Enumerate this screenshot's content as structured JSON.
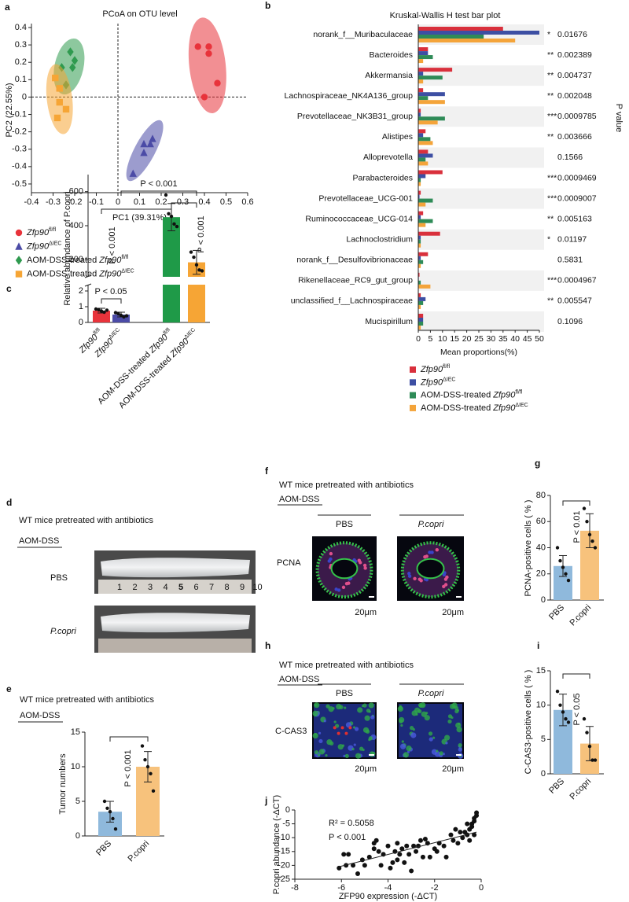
{
  "chart_data": [
    {
      "panel": "a",
      "type": "scatter",
      "title": "PCoA on OTU level",
      "xlabel": "PC1 (39.31%)",
      "ylabel": "PC2 (22.55%)",
      "xlim": [
        -0.4,
        0.6
      ],
      "xticks": [
        -0.4,
        -0.3,
        -0.2,
        -0.1,
        0,
        0.1,
        0.2,
        0.3,
        0.4,
        0.5,
        0.6
      ],
      "ylim": [
        -0.55,
        0.4
      ],
      "yticks": [
        -0.5,
        -0.4,
        -0.3,
        -0.2,
        -0.1,
        0,
        0.1,
        0.2,
        0.3,
        0.4
      ],
      "series": [
        {
          "name": "Zfp90",
          "sup": "fl/fl",
          "color": "#e8333b",
          "marker": "circle",
          "x": [
            0.37,
            0.42,
            0.42,
            0.46,
            0.4
          ],
          "y": [
            0.29,
            0.29,
            0.25,
            0.08,
            0.0
          ]
        },
        {
          "name": "Zfp90",
          "sup": "ΔIEC",
          "color": "#4b4ba6",
          "marker": "triangle",
          "x": [
            0.16,
            0.15,
            0.12,
            0.12,
            0.07
          ],
          "y": [
            -0.24,
            -0.27,
            -0.27,
            -0.32,
            -0.44
          ]
        },
        {
          "prefix": "AOM-DSS-treated",
          "name": "Zfp90",
          "sup": "fl/fl",
          "color": "#2f9a4f",
          "marker": "diamond",
          "x": [
            -0.22,
            -0.2,
            -0.21,
            -0.24,
            -0.26
          ],
          "y": [
            0.26,
            0.21,
            0.17,
            0.07,
            0.17
          ]
        },
        {
          "prefix": "AOM-DSS-treated",
          "name": "Zfp90",
          "sup": "ΔIEC",
          "color": "#f6a535",
          "marker": "square",
          "x": [
            -0.29,
            -0.27,
            -0.27,
            -0.24,
            -0.28
          ],
          "y": [
            0.11,
            0.05,
            -0.03,
            -0.07,
            -0.12
          ]
        }
      ]
    },
    {
      "panel": "b",
      "type": "hbar",
      "title": "Kruskal-Wallis H test bar plot",
      "xlabel": "Mean proportions(%)",
      "y2label": "P value",
      "xlim": [
        0,
        50
      ],
      "xticks": [
        0,
        5,
        10,
        15,
        20,
        25,
        30,
        35,
        40,
        45,
        50
      ],
      "categories": [
        "norank_f__Muribaculaceae",
        "Bacteroides",
        "Akkermansia",
        "Lachnospiraceae_NK4A136_group",
        "Prevotellaceae_NK3B31_group",
        "Alistipes",
        "Alloprevotella",
        "Parabacteroides",
        "Prevotellaceae_UCG-001",
        "Ruminococcaceae_UCG-014",
        "Lachnoclostridium",
        "norank_f__Desulfovibrionaceae",
        "Rikenellaceae_RC9_gut_group",
        "unclassified_f__Lachnospiraceae",
        "Mucispirillum"
      ],
      "stars": [
        "*",
        "**",
        "**",
        "**",
        "***",
        "**",
        null,
        "***",
        "***",
        "**",
        "*",
        null,
        "***",
        "**",
        null
      ],
      "p_values": [
        0.01676,
        0.002389,
        0.004737,
        0.002048,
        0.0009785,
        0.003666,
        0.1566,
        0.0009469,
        0.0009007,
        0.005163,
        0.01197,
        0.5831,
        0.0004967,
        0.005547,
        0.1096
      ],
      "series": [
        {
          "name": "Zfp90",
          "sup": "fl/fl",
          "color": "#d9303c",
          "values": [
            35,
            4,
            14,
            2,
            1,
            3,
            4,
            10,
            1,
            2,
            9,
            4,
            0.5,
            1,
            2
          ]
        },
        {
          "name": "Zfp90",
          "sup": "ΔIEC",
          "color": "#3d4fa3",
          "values": [
            50,
            4,
            2,
            11,
            1,
            2,
            6,
            3,
            0.5,
            1,
            1,
            1,
            0.2,
            3,
            2
          ]
        },
        {
          "prefix": "AOM-DSS-treated",
          "name": "Zfp90",
          "sup": "fl/fl",
          "color": "#2e8b57",
          "values": [
            27,
            6,
            10,
            4,
            11,
            5,
            3,
            1,
            6,
            6,
            1,
            2,
            1,
            2,
            2
          ]
        },
        {
          "prefix": "AOM-DSS-treated",
          "name": "Zfp90",
          "sup": "ΔIEC",
          "color": "#f4a43a",
          "values": [
            40,
            2,
            2,
            11,
            8,
            6,
            4,
            1,
            3,
            3,
            1,
            1,
            5,
            1,
            1
          ]
        }
      ]
    },
    {
      "panel": "c",
      "type": "bar",
      "ylabel": "Relative abundance of P.copri",
      "categories": [
        {
          "name": "Zfp90",
          "sup": "fl/fl"
        },
        {
          "name": "Zfp90",
          "sup": "ΔIEC"
        },
        {
          "prefix": "AOM-DSS-treated",
          "name": "Zfp90",
          "sup": "fl/fl"
        },
        {
          "prefix": "AOM-DSS-treated",
          "name": "Zfp90",
          "sup": "ΔIEC"
        }
      ],
      "values": [
        0.75,
        0.5,
        450,
        185
      ],
      "errors": [
        0.15,
        0.15,
        80,
        70
      ],
      "points": [
        [
          0.85,
          0.8,
          0.72,
          0.65,
          0.78
        ],
        [
          0.62,
          0.55,
          0.45,
          0.35,
          0.42
        ],
        [
          580,
          470,
          455,
          410,
          395
        ],
        [
          245,
          215,
          170,
          140,
          135
        ]
      ],
      "colors": [
        "#e8333b",
        "#4b4ba6",
        "#1f9a48",
        "#f6a535"
      ],
      "segments": [
        {
          "ylim": [
            0,
            2.4
          ],
          "yticks": [
            0,
            1,
            2
          ]
        },
        {
          "ylim": [
            100,
            700
          ],
          "yticks": [
            200,
            400,
            600
          ]
        }
      ],
      "comparisons": [
        {
          "pair": [
            0,
            1
          ],
          "label": "P < 0.05"
        },
        {
          "pair": [
            0,
            2
          ],
          "label": "P < 0.001"
        },
        {
          "pair": [
            1,
            3
          ],
          "label": "P < 0.001"
        },
        {
          "pair": [
            2,
            3
          ],
          "label": "P < 0.001"
        }
      ]
    },
    {
      "panel": "e",
      "type": "bar",
      "header": "WT mice pretreated with antibiotics",
      "treatment": "AOM-DSS",
      "ylabel": "Tumor numbers",
      "categories": [
        "PBS",
        "P.copri"
      ],
      "values": [
        3.5,
        10
      ],
      "errors": [
        1.5,
        2.2
      ],
      "points": [
        [
          5,
          4,
          3.5,
          2.5,
          1
        ],
        [
          13,
          11,
          10,
          9,
          6.5
        ]
      ],
      "colors": [
        "#8fb9dc",
        "#f7c27c"
      ],
      "ylim": [
        0,
        15
      ],
      "yticks": [
        0,
        5,
        10,
        15
      ],
      "comparisons": [
        {
          "pair": [
            0,
            1
          ],
          "label": "P < 0.001"
        }
      ]
    },
    {
      "panel": "g",
      "type": "bar",
      "ylabel": "PCNA-positive cells ( % )",
      "categories": [
        "PBS",
        "P.copri"
      ],
      "values": [
        26,
        53
      ],
      "errors": [
        8,
        13
      ],
      "points": [
        [
          40,
          30,
          25,
          20,
          15
        ],
        [
          70,
          60,
          50,
          45,
          40
        ]
      ],
      "colors": [
        "#8fb9dc",
        "#f7c27c"
      ],
      "ylim": [
        0,
        80
      ],
      "yticks": [
        0,
        20,
        40,
        60,
        80
      ],
      "comparisons": [
        {
          "pair": [
            0,
            1
          ],
          "label": "P < 0.01"
        }
      ]
    },
    {
      "panel": "i",
      "type": "bar",
      "ylabel": "C-CAS3-positive cells ( % )",
      "categories": [
        "PBS",
        "P.copri"
      ],
      "values": [
        9.3,
        4.4
      ],
      "errors": [
        2.3,
        2.5
      ],
      "points": [
        [
          12,
          10,
          9,
          8,
          7.5
        ],
        [
          8,
          6,
          4,
          2,
          2
        ]
      ],
      "colors": [
        "#8fb9dc",
        "#f7c27c"
      ],
      "ylim": [
        0,
        15
      ],
      "yticks": [
        0,
        5,
        10,
        15
      ],
      "comparisons": [
        {
          "pair": [
            0,
            1
          ],
          "label": "P < 0.05"
        }
      ]
    },
    {
      "panel": "j",
      "type": "regression",
      "xlabel": "ZFP90 expression (-ΔCT)",
      "ylabel": "P.copri abundance (-ΔCT)",
      "annotations": [
        "R² = 0.5058",
        "P < 0.001"
      ],
      "xlim": [
        -8,
        0
      ],
      "xticks": [
        -8,
        -6,
        -4,
        -2,
        0
      ],
      "ylim": [
        -25,
        0
      ],
      "yticks": [
        0,
        -5,
        -10,
        -15,
        -20,
        -25
      ],
      "x": [
        -6.1,
        -5.9,
        -5.8,
        -5.7,
        -5.5,
        -5.3,
        -5.1,
        -5.0,
        -4.8,
        -4.6,
        -4.5,
        -4.4,
        -4.3,
        -4.2,
        -4.0,
        -3.9,
        -3.8,
        -3.7,
        -3.6,
        -3.5,
        -3.4,
        -3.3,
        -3.2,
        -3.1,
        -3.0,
        -2.9,
        -2.8,
        -2.7,
        -2.6,
        -2.5,
        -2.3,
        -2.2,
        -2.0,
        -1.9,
        -1.8,
        -1.6,
        -1.5,
        -1.3,
        -1.2,
        -1.0,
        -0.9,
        -0.8,
        -0.7,
        -0.6,
        -0.5,
        -0.5,
        -0.4,
        -0.4,
        -0.3,
        -0.3,
        -0.2,
        -0.2,
        -0.3,
        -0.6,
        -1.1,
        -3.6,
        -4.6,
        -2.4
      ],
      "y": [
        -21,
        -16,
        -20,
        -16,
        -20,
        -23,
        -18,
        -20,
        -17,
        -14,
        -11,
        -15,
        -20,
        -16,
        -13,
        -21,
        -19,
        -15,
        -12,
        -16,
        -14,
        -19,
        -13,
        -16,
        -22,
        -13,
        -15,
        -13,
        -11,
        -17,
        -12,
        -17,
        -14,
        -15,
        -12,
        -13,
        -17,
        -9,
        -11,
        -12,
        -8,
        -10,
        -8,
        -9,
        -7,
        -11,
        -5,
        -6,
        -3,
        -4,
        -1,
        -2,
        -9,
        -5,
        -7,
        -18,
        -12,
        -10.5
      ],
      "fit": {
        "x": [
          -6.1,
          -0.2
        ],
        "y": [
          -20.5,
          -8
        ]
      }
    }
  ],
  "image_panels": [
    {
      "panel": "d",
      "header": "WT mice pretreated with antibiotics",
      "treatment": "AOM-DSS",
      "rows": [
        "PBS",
        "P.copri"
      ],
      "ruler": [
        1,
        2,
        3,
        4,
        5,
        6,
        7,
        8,
        9,
        10
      ]
    },
    {
      "panel": "f",
      "header": "WT mice pretreated with antibiotics",
      "treatment": "AOM-DSS",
      "columns": [
        "PBS",
        "P.copri"
      ],
      "stain": "PCNA",
      "scale_bars": [
        "20μm",
        "20μm"
      ]
    },
    {
      "panel": "h",
      "header": "WT mice pretreated with antibiotics",
      "treatment": "AOM-DSS",
      "columns": [
        "PBS",
        "P.copri"
      ],
      "stain": "C-CAS3",
      "scale_bars": [
        "20μm",
        "20μm"
      ]
    }
  ]
}
